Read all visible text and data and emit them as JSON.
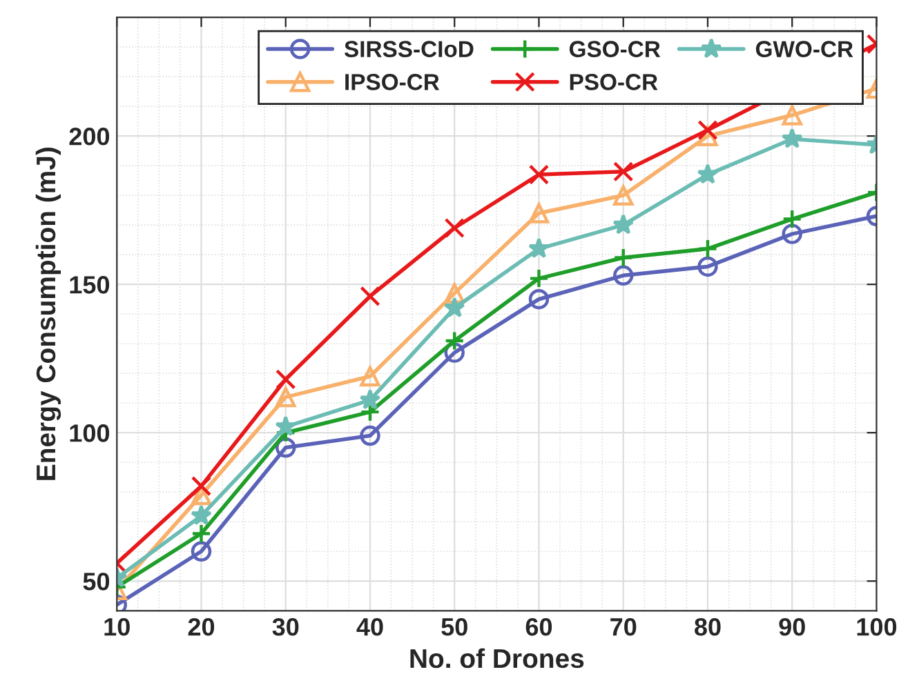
{
  "chart_data": {
    "type": "line",
    "xlabel": "No. of Drones",
    "ylabel": "Energy Consumption (mJ)",
    "x": [
      10,
      20,
      30,
      40,
      50,
      60,
      70,
      80,
      90,
      100
    ],
    "xlim": [
      10,
      100
    ],
    "xticks": [
      10,
      20,
      30,
      40,
      50,
      60,
      70,
      80,
      90,
      100
    ],
    "ylim": [
      40,
      240
    ],
    "yticks": [
      50,
      100,
      150,
      200
    ],
    "grid": true,
    "legend": "top right",
    "series": [
      {
        "name": "SIRSS-CIoD",
        "color": "#5a63b8",
        "marker": "circle",
        "values": [
          42,
          60,
          95,
          99,
          127,
          145,
          153,
          156,
          167,
          173
        ]
      },
      {
        "name": "IPSO-CR",
        "color": "#f8b06a",
        "marker": "triangle",
        "values": [
          47,
          79,
          112,
          119,
          147,
          174,
          180,
          200,
          207,
          216
        ]
      },
      {
        "name": "GSO-CR",
        "color": "#1f9e2a",
        "marker": "plus",
        "values": [
          48,
          66,
          100,
          107,
          131,
          152,
          159,
          162,
          172,
          181
        ]
      },
      {
        "name": "PSO-CR",
        "color": "#e8191b",
        "marker": "cross",
        "values": [
          56,
          82,
          118,
          146,
          169,
          187,
          188,
          202,
          null,
          231
        ]
      },
      {
        "name": "GWO-CR",
        "color": "#6bbcb4",
        "marker": "star",
        "values": [
          51,
          72,
          102,
          111,
          142,
          162,
          170,
          187,
          199,
          197
        ]
      }
    ]
  }
}
